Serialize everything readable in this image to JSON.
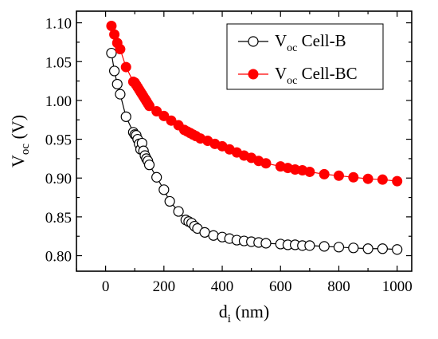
{
  "chart_data": {
    "type": "line",
    "xlabel": {
      "base": "d",
      "sub": "i",
      "rest": " (nm)"
    },
    "ylabel": {
      "base": "V",
      "sub": "oc",
      "rest": " (V)"
    },
    "xlim": [
      -100,
      1050
    ],
    "ylim": [
      0.78,
      1.115
    ],
    "xticks": [
      0,
      200,
      400,
      600,
      800,
      1000
    ],
    "xtick_labels": [
      "0",
      "200",
      "400",
      "600",
      "800",
      "1000"
    ],
    "yticks": [
      0.8,
      0.85,
      0.9,
      0.95,
      1.0,
      1.05,
      1.1
    ],
    "ytick_labels": [
      "0.80",
      "0.85",
      "0.90",
      "0.95",
      "1.00",
      "1.05",
      "1.10"
    ],
    "legend_position": "top-right",
    "series": [
      {
        "legend": {
          "base": "V",
          "sub": "oc",
          "rest": " Cell-B"
        },
        "color": "#000000",
        "marker": "open-circle",
        "x": [
          20,
          30,
          40,
          50,
          70,
          95,
          100,
          105,
          110,
          115,
          120,
          125,
          130,
          135,
          140,
          145,
          150,
          175,
          200,
          220,
          250,
          275,
          285,
          295,
          305,
          315,
          340,
          370,
          400,
          425,
          450,
          475,
          500,
          525,
          550,
          600,
          625,
          650,
          675,
          700,
          750,
          800,
          850,
          900,
          950,
          1000
        ],
        "y": [
          1.061,
          1.038,
          1.021,
          1.008,
          0.979,
          0.959,
          0.956,
          0.955,
          0.95,
          0.944,
          0.937,
          0.945,
          0.935,
          0.929,
          0.925,
          0.922,
          0.917,
          0.901,
          0.885,
          0.87,
          0.857,
          0.846,
          0.844,
          0.842,
          0.838,
          0.835,
          0.83,
          0.826,
          0.824,
          0.822,
          0.82,
          0.819,
          0.818,
          0.817,
          0.816,
          0.815,
          0.814,
          0.814,
          0.813,
          0.813,
          0.812,
          0.811,
          0.81,
          0.809,
          0.809,
          0.808
        ]
      },
      {
        "legend": {
          "base": "V",
          "sub": "oc",
          "rest": " Cell-BC"
        },
        "color": "#ff0000",
        "marker": "filled-circle",
        "x": [
          20,
          30,
          40,
          50,
          70,
          95,
          100,
          105,
          110,
          115,
          120,
          125,
          130,
          135,
          140,
          145,
          150,
          175,
          200,
          225,
          250,
          270,
          280,
          290,
          300,
          310,
          325,
          350,
          375,
          400,
          425,
          450,
          475,
          500,
          525,
          550,
          600,
          625,
          650,
          675,
          700,
          750,
          800,
          850,
          900,
          950,
          1000
        ],
        "y": [
          1.096,
          1.085,
          1.074,
          1.066,
          1.043,
          1.024,
          1.023,
          1.02,
          1.017,
          1.014,
          1.011,
          1.008,
          1.005,
          1.002,
          0.999,
          0.996,
          0.993,
          0.986,
          0.98,
          0.974,
          0.968,
          0.962,
          0.96,
          0.958,
          0.956,
          0.954,
          0.951,
          0.948,
          0.944,
          0.941,
          0.937,
          0.933,
          0.929,
          0.926,
          0.922,
          0.919,
          0.915,
          0.913,
          0.911,
          0.91,
          0.908,
          0.905,
          0.903,
          0.901,
          0.899,
          0.898,
          0.896
        ]
      }
    ]
  }
}
